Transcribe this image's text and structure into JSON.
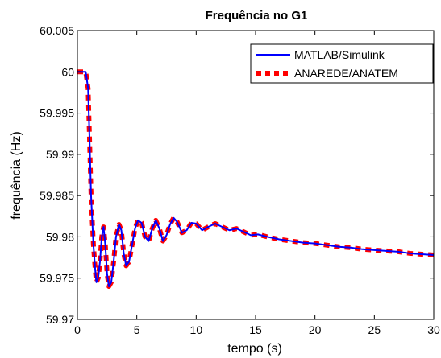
{
  "chart_data": {
    "type": "line",
    "title": "Frequência no G1",
    "xlabel": "tempo (s)",
    "ylabel": "frequência (Hz)",
    "xlim": [
      0,
      30
    ],
    "ylim": [
      59.97,
      60.005
    ],
    "x_ticks": [
      "0",
      "5",
      "10",
      "15",
      "20",
      "25",
      "30"
    ],
    "y_ticks": [
      "59.97",
      "59.975",
      "59.98",
      "59.985",
      "59.99",
      "59.995",
      "60",
      "60.005"
    ],
    "grid": false,
    "legend_position": "top-right",
    "series": [
      {
        "name": "MATLAB/Simulink",
        "color": "#0000ff",
        "style": "solid",
        "points": [
          [
            0,
            60.0
          ],
          [
            0.3,
            60.0
          ],
          [
            0.7,
            60.0
          ],
          [
            0.9,
            59.998
          ],
          [
            1.0,
            59.993
          ],
          [
            1.15,
            59.985
          ],
          [
            1.35,
            59.979
          ],
          [
            1.5,
            59.976
          ],
          [
            1.6,
            59.9745
          ],
          [
            1.75,
            59.975
          ],
          [
            1.9,
            59.977
          ],
          [
            2.05,
            59.98
          ],
          [
            2.2,
            59.9812
          ],
          [
            2.35,
            59.979
          ],
          [
            2.5,
            59.9755
          ],
          [
            2.65,
            59.974
          ],
          [
            2.85,
            59.9745
          ],
          [
            3.05,
            59.977
          ],
          [
            3.25,
            59.98
          ],
          [
            3.5,
            59.9815
          ],
          [
            3.7,
            59.9808
          ],
          [
            3.9,
            59.978
          ],
          [
            4.1,
            59.9765
          ],
          [
            4.35,
            59.977
          ],
          [
            4.6,
            59.979
          ],
          [
            4.85,
            59.981
          ],
          [
            5.1,
            59.982
          ],
          [
            5.4,
            59.9817
          ],
          [
            5.7,
            59.98
          ],
          [
            6.0,
            59.9795
          ],
          [
            6.3,
            59.981
          ],
          [
            6.6,
            59.982
          ],
          [
            6.9,
            59.981
          ],
          [
            7.2,
            59.9795
          ],
          [
            7.5,
            59.9802
          ],
          [
            7.8,
            59.9815
          ],
          [
            8.1,
            59.9823
          ],
          [
            8.4,
            59.9818
          ],
          [
            8.8,
            59.9805
          ],
          [
            9.2,
            59.9808
          ],
          [
            9.6,
            59.9817
          ],
          [
            10.0,
            59.9816
          ],
          [
            10.5,
            59.9808
          ],
          [
            11.0,
            59.9812
          ],
          [
            11.6,
            59.9816
          ],
          [
            12.2,
            59.9812
          ],
          [
            12.8,
            59.9808
          ],
          [
            13.4,
            59.981
          ],
          [
            14.0,
            59.9806
          ],
          [
            14.6,
            59.9802
          ],
          [
            15.2,
            59.9803
          ],
          [
            16.0,
            59.98
          ],
          [
            17.0,
            59.9797
          ],
          [
            18.0,
            59.9795
          ],
          [
            19.0,
            59.9793
          ],
          [
            20.0,
            59.9792
          ],
          [
            21.0,
            59.979
          ],
          [
            22.0,
            59.9788
          ],
          [
            23.0,
            59.9787
          ],
          [
            24.0,
            59.9785
          ],
          [
            25.0,
            59.9784
          ],
          [
            26.0,
            59.9783
          ],
          [
            27.0,
            59.9782
          ],
          [
            28.0,
            59.978
          ],
          [
            29.0,
            59.9779
          ],
          [
            30.0,
            59.9778
          ]
        ]
      },
      {
        "name": "ANAREDE/ANATEM",
        "color": "#ff0000",
        "style": "dashed",
        "points": [
          [
            0,
            60.0
          ],
          [
            0.3,
            60.0
          ],
          [
            0.7,
            60.0
          ],
          [
            0.9,
            59.998
          ],
          [
            1.0,
            59.993
          ],
          [
            1.15,
            59.985
          ],
          [
            1.35,
            59.979
          ],
          [
            1.5,
            59.976
          ],
          [
            1.6,
            59.9745
          ],
          [
            1.75,
            59.975
          ],
          [
            1.9,
            59.977
          ],
          [
            2.05,
            59.98
          ],
          [
            2.2,
            59.9812
          ],
          [
            2.35,
            59.979
          ],
          [
            2.5,
            59.9755
          ],
          [
            2.65,
            59.974
          ],
          [
            2.85,
            59.9745
          ],
          [
            3.05,
            59.977
          ],
          [
            3.25,
            59.98
          ],
          [
            3.5,
            59.9815
          ],
          [
            3.7,
            59.9808
          ],
          [
            3.9,
            59.978
          ],
          [
            4.1,
            59.9765
          ],
          [
            4.35,
            59.977
          ],
          [
            4.6,
            59.979
          ],
          [
            4.85,
            59.981
          ],
          [
            5.1,
            59.982
          ],
          [
            5.4,
            59.9817
          ],
          [
            5.7,
            59.98
          ],
          [
            6.0,
            59.9795
          ],
          [
            6.3,
            59.981
          ],
          [
            6.6,
            59.982
          ],
          [
            6.9,
            59.981
          ],
          [
            7.2,
            59.9795
          ],
          [
            7.5,
            59.9802
          ],
          [
            7.8,
            59.9815
          ],
          [
            8.1,
            59.9823
          ],
          [
            8.4,
            59.9818
          ],
          [
            8.8,
            59.9805
          ],
          [
            9.2,
            59.9808
          ],
          [
            9.6,
            59.9817
          ],
          [
            10.0,
            59.9816
          ],
          [
            10.5,
            59.9808
          ],
          [
            11.0,
            59.9812
          ],
          [
            11.6,
            59.9816
          ],
          [
            12.2,
            59.9812
          ],
          [
            12.8,
            59.9808
          ],
          [
            13.4,
            59.981
          ],
          [
            14.0,
            59.9806
          ],
          [
            14.6,
            59.9802
          ],
          [
            15.2,
            59.9803
          ],
          [
            16.0,
            59.98
          ],
          [
            17.0,
            59.9797
          ],
          [
            18.0,
            59.9795
          ],
          [
            19.0,
            59.9793
          ],
          [
            20.0,
            59.9792
          ],
          [
            21.0,
            59.979
          ],
          [
            22.0,
            59.9788
          ],
          [
            23.0,
            59.9787
          ],
          [
            24.0,
            59.9785
          ],
          [
            25.0,
            59.9784
          ],
          [
            26.0,
            59.9783
          ],
          [
            27.0,
            59.9782
          ],
          [
            28.0,
            59.978
          ],
          [
            29.0,
            59.9779
          ],
          [
            30.0,
            59.9778
          ]
        ]
      }
    ]
  }
}
